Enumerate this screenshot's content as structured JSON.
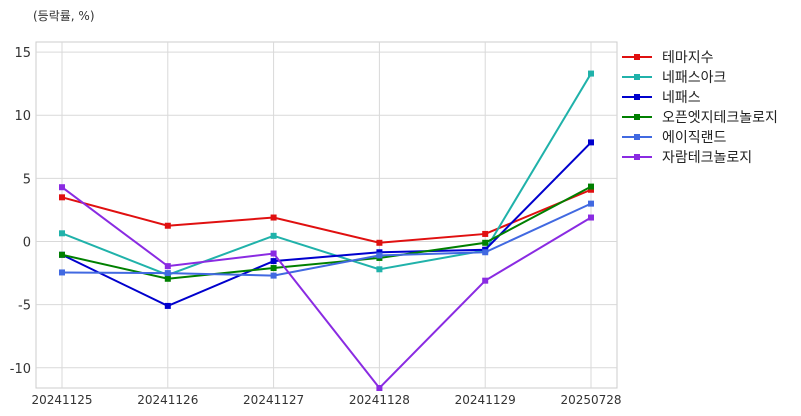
{
  "chart_data": {
    "type": "line",
    "unit_label": "(등락률, %)",
    "categories": [
      "20241125",
      "20241126",
      "20241127",
      "20241128",
      "20241129",
      "20250728"
    ],
    "ylim": [
      -11.6,
      15.8
    ],
    "yticks": [
      -10,
      -5,
      0,
      5,
      10,
      15
    ],
    "ytick_labels": [
      "-10",
      "-5",
      "0",
      "5",
      "10",
      "15"
    ],
    "grid": true,
    "legend_position": "right",
    "series": [
      {
        "name": "테마지수",
        "color": "#e01010",
        "values": [
          3.5,
          1.25,
          1.9,
          -0.1,
          0.6,
          4.1
        ]
      },
      {
        "name": "네패스아크",
        "color": "#20b2aa",
        "values": [
          0.65,
          -2.65,
          0.45,
          -2.2,
          -0.7,
          13.3
        ]
      },
      {
        "name": "네패스",
        "color": "#0000cd",
        "values": [
          -1.05,
          -5.1,
          -1.55,
          -0.85,
          -0.65,
          7.85
        ]
      },
      {
        "name": "오픈엣지테크놀로지",
        "color": "#008000",
        "values": [
          -1.05,
          -2.95,
          -2.1,
          -1.3,
          -0.1,
          4.35
        ]
      },
      {
        "name": "에이직랜드",
        "color": "#4169e1",
        "values": [
          -2.45,
          -2.5,
          -2.7,
          -1.1,
          -0.85,
          3.0
        ]
      },
      {
        "name": "자람테크놀로지",
        "color": "#8a2be2",
        "values": [
          4.3,
          -1.95,
          -0.95,
          -11.6,
          -3.1,
          1.9
        ]
      }
    ]
  }
}
